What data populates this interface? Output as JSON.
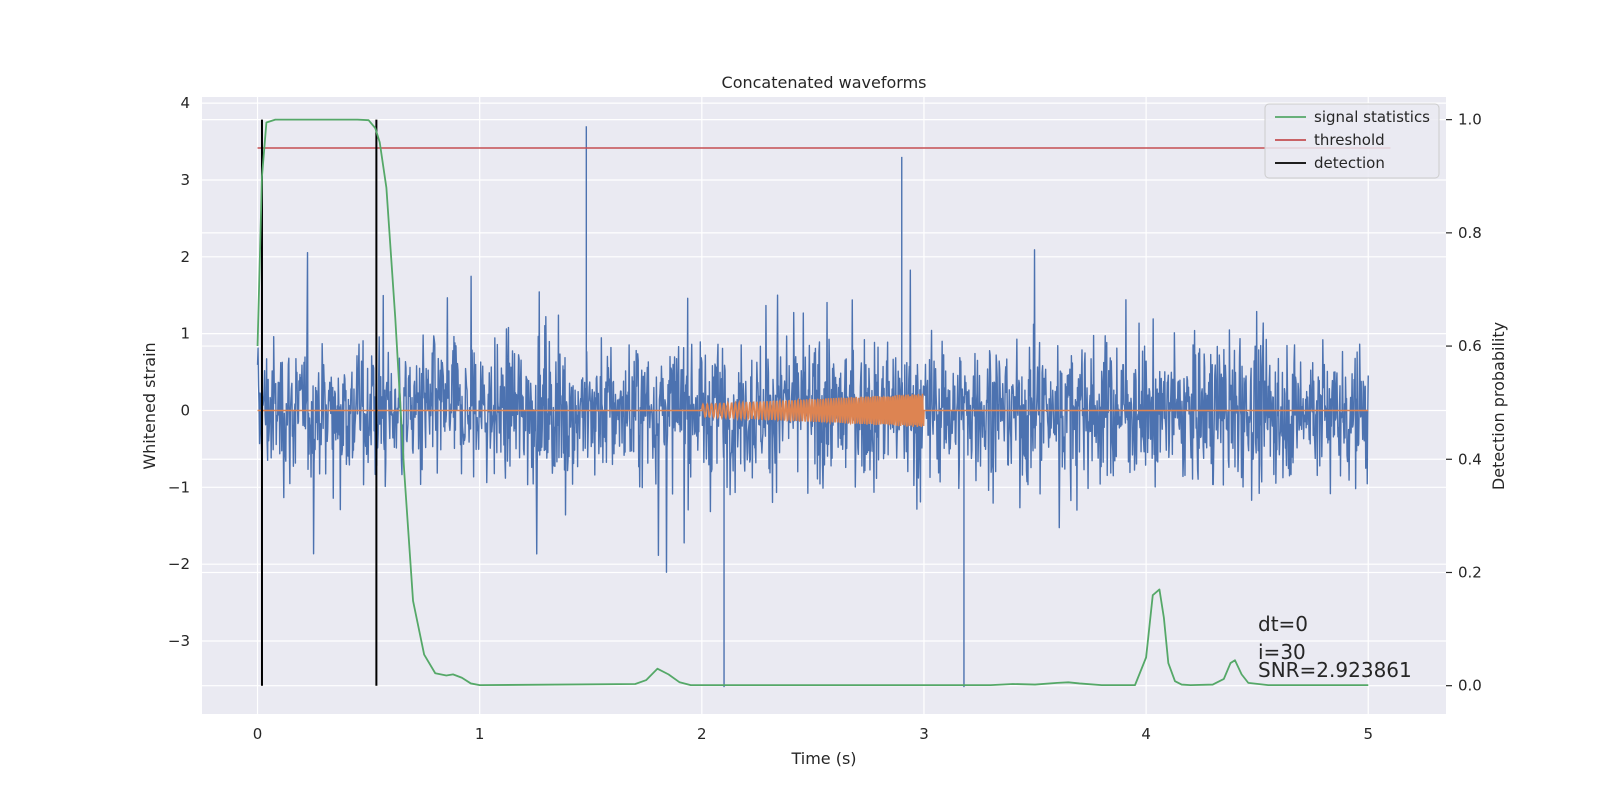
{
  "chart_data": {
    "type": "line",
    "title": "Concatenated waveforms",
    "xlabel": "Time (s)",
    "ylabel_left": "Whitened strain",
    "ylabel_right": "Detection probability",
    "xlim": [
      -0.25,
      5.35
    ],
    "ylim_left": [
      -3.95,
      4.08
    ],
    "ylim_right": [
      -0.05,
      1.04
    ],
    "xticks": [
      0,
      1,
      2,
      3,
      4,
      5
    ],
    "xtick_labels": [
      "0",
      "1",
      "2",
      "3",
      "4",
      "5"
    ],
    "yticks_left": [
      4,
      3,
      2,
      1,
      0,
      -1,
      -2,
      -3
    ],
    "ytick_labels_left": [
      "4",
      "3",
      "2",
      "1",
      "0",
      "−1",
      "−2",
      "−3"
    ],
    "yticks_right": [
      1.0,
      0.8,
      0.6,
      0.4,
      0.2,
      0.0
    ],
    "ytick_labels_right": [
      "1.0",
      "0.8",
      "0.6",
      "0.4",
      "0.2",
      "0.0"
    ],
    "grid": true,
    "legend_position": "top-right",
    "legend": [
      {
        "label": "signal statistics",
        "color": "#55a868"
      },
      {
        "label": "threshold",
        "color": "#c44e52"
      },
      {
        "label": "detection",
        "color": "#000000"
      }
    ],
    "series": [
      {
        "role": "whitened noise strain",
        "axis": "left",
        "color": "#4c72b0",
        "x_range": [
          0,
          5
        ],
        "typical_amplitude": 0.7,
        "peak_values": [
          3.7,
          -3.6
        ]
      },
      {
        "role": "injected chirp waveform",
        "axis": "left",
        "color": "#dd8452",
        "x_range": [
          0,
          5
        ],
        "chirp_interval": [
          2.0,
          3.0
        ],
        "chirp_amplitude_start": 0.08,
        "chirp_amplitude_end": 0.22
      },
      {
        "name": "signal statistics",
        "axis": "right",
        "color": "#55a868",
        "x": [
          0.0,
          0.02,
          0.04,
          0.08,
          0.15,
          0.3,
          0.45,
          0.5,
          0.53,
          0.55,
          0.58,
          0.62,
          0.66,
          0.7,
          0.75,
          0.8,
          0.85,
          0.88,
          0.92,
          0.96,
          1.0,
          1.7,
          1.75,
          1.8,
          1.85,
          1.9,
          1.95,
          3.3,
          3.4,
          3.5,
          3.6,
          3.65,
          3.7,
          3.8,
          3.95,
          4.0,
          4.03,
          4.06,
          4.08,
          4.1,
          4.13,
          4.16,
          4.2,
          4.3,
          4.35,
          4.38,
          4.4,
          4.43,
          4.46,
          4.55,
          5.0
        ],
        "y": [
          0.6,
          0.9,
          0.995,
          1.0,
          1.0,
          1.0,
          1.0,
          0.999,
          0.985,
          0.96,
          0.88,
          0.65,
          0.38,
          0.15,
          0.055,
          0.022,
          0.018,
          0.02,
          0.014,
          0.004,
          0.001,
          0.003,
          0.01,
          0.03,
          0.02,
          0.006,
          0.001,
          0.001,
          0.003,
          0.002,
          0.005,
          0.006,
          0.004,
          0.001,
          0.001,
          0.05,
          0.16,
          0.17,
          0.12,
          0.04,
          0.008,
          0.002,
          0.001,
          0.002,
          0.012,
          0.04,
          0.045,
          0.02,
          0.005,
          0.001,
          0.001
        ]
      },
      {
        "name": "threshold",
        "axis": "right",
        "color": "#c44e52",
        "x": [
          0,
          5.1
        ],
        "y": [
          0.95,
          0.95
        ]
      }
    ],
    "detections": [
      {
        "x": 0.02,
        "y_range": [
          0.0,
          1.0
        ]
      },
      {
        "x": 0.535,
        "y_range": [
          0.0,
          1.0
        ]
      }
    ],
    "annotations": [
      "dt=0",
      "i=30",
      "SNR=2.923861"
    ]
  }
}
